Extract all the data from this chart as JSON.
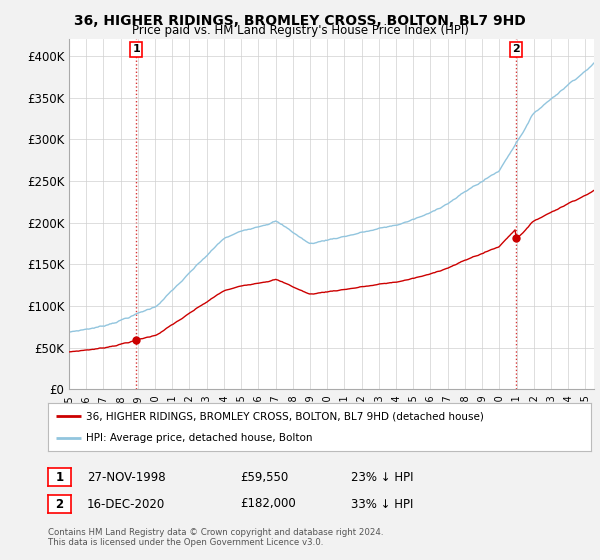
{
  "title": "36, HIGHER RIDINGS, BROMLEY CROSS, BOLTON, BL7 9HD",
  "subtitle": "Price paid vs. HM Land Registry's House Price Index (HPI)",
  "ylim": [
    0,
    420000
  ],
  "yticks": [
    0,
    50000,
    100000,
    150000,
    200000,
    250000,
    300000,
    350000,
    400000
  ],
  "ytick_labels": [
    "£0",
    "£50K",
    "£100K",
    "£150K",
    "£200K",
    "£250K",
    "£300K",
    "£350K",
    "£400K"
  ],
  "hpi_color": "#92c5de",
  "price_color": "#cc0000",
  "background_color": "#f2f2f2",
  "plot_bg_color": "#ffffff",
  "sale1_date": 1998.9,
  "sale1_price": 59550,
  "sale1_label": "1",
  "sale2_date": 2020.96,
  "sale2_price": 182000,
  "sale2_label": "2",
  "legend_line1": "36, HIGHER RIDINGS, BROMLEY CROSS, BOLTON, BL7 9HD (detached house)",
  "legend_line2": "HPI: Average price, detached house, Bolton",
  "table_row1": [
    "1",
    "27-NOV-1998",
    "£59,550",
    "23% ↓ HPI"
  ],
  "table_row2": [
    "2",
    "16-DEC-2020",
    "£182,000",
    "33% ↓ HPI"
  ],
  "footnote": "Contains HM Land Registry data © Crown copyright and database right 2024.\nThis data is licensed under the Open Government Licence v3.0.",
  "xmin": 1995,
  "xmax": 2025.5
}
